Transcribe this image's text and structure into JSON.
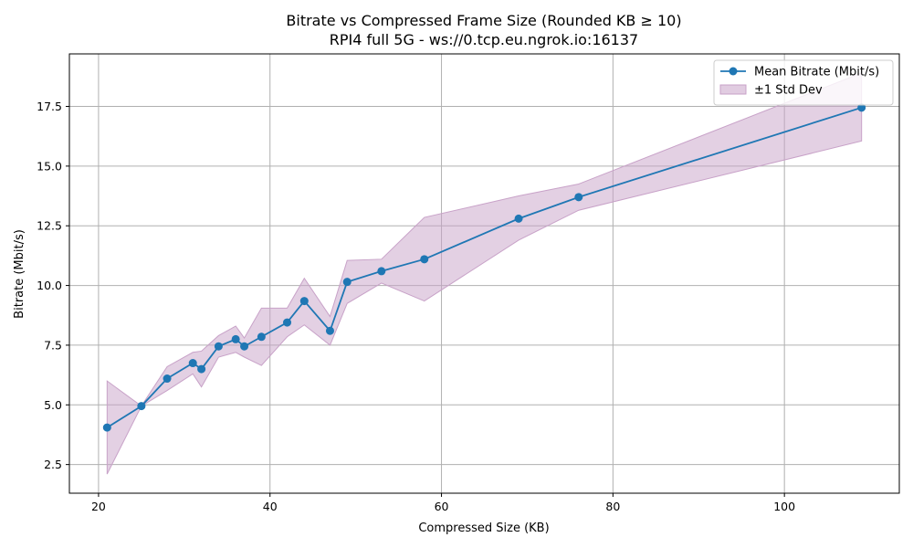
{
  "chart_data": {
    "type": "line",
    "title": "Bitrate vs Compressed Frame Size (Rounded KB ≥ 10)",
    "subtitle": "RPI4 full 5G - ws://0.tcp.eu.ngrok.io:16137",
    "xlabel": "Compressed Size (KB)",
    "ylabel": "Bitrate (Mbit/s)",
    "xlim": [
      16.6,
      113.4
    ],
    "ylim": [
      1.3,
      19.7
    ],
    "xticks": [
      20,
      40,
      60,
      80,
      100
    ],
    "xtick_labels": [
      "20",
      "40",
      "60",
      "80",
      "100"
    ],
    "yticks": [
      2.5,
      5.0,
      7.5,
      10.0,
      12.5,
      15.0,
      17.5
    ],
    "ytick_labels": [
      "2.5",
      "5.0",
      "7.5",
      "10.0",
      "12.5",
      "15.0",
      "17.5"
    ],
    "grid": true,
    "legend_position": "top-right",
    "series": [
      {
        "name": "Mean Bitrate (Mbit/s)",
        "color": "#1f77b4",
        "marker": "circle",
        "x": [
          21,
          25,
          28,
          31,
          32,
          34,
          36,
          37,
          39,
          42,
          44,
          47,
          49,
          53,
          58,
          69,
          76,
          109
        ],
        "y": [
          4.05,
          4.95,
          6.1,
          6.75,
          6.5,
          7.45,
          7.75,
          7.45,
          7.85,
          8.45,
          9.35,
          8.1,
          10.15,
          10.6,
          11.1,
          12.8,
          13.7,
          17.45
        ]
      }
    ],
    "band": {
      "name": "±1 Std Dev",
      "color": "#c8a2c8",
      "upper": [
        6.0,
        4.95,
        6.6,
        7.2,
        7.25,
        7.9,
        8.3,
        7.8,
        9.05,
        9.05,
        10.3,
        8.7,
        11.05,
        11.1,
        12.85,
        13.75,
        14.25,
        18.9
      ],
      "lower": [
        2.1,
        4.95,
        5.6,
        6.3,
        5.75,
        7.0,
        7.2,
        7.0,
        6.65,
        7.85,
        8.35,
        7.5,
        9.25,
        10.1,
        9.35,
        11.9,
        13.15,
        16.05
      ]
    }
  }
}
